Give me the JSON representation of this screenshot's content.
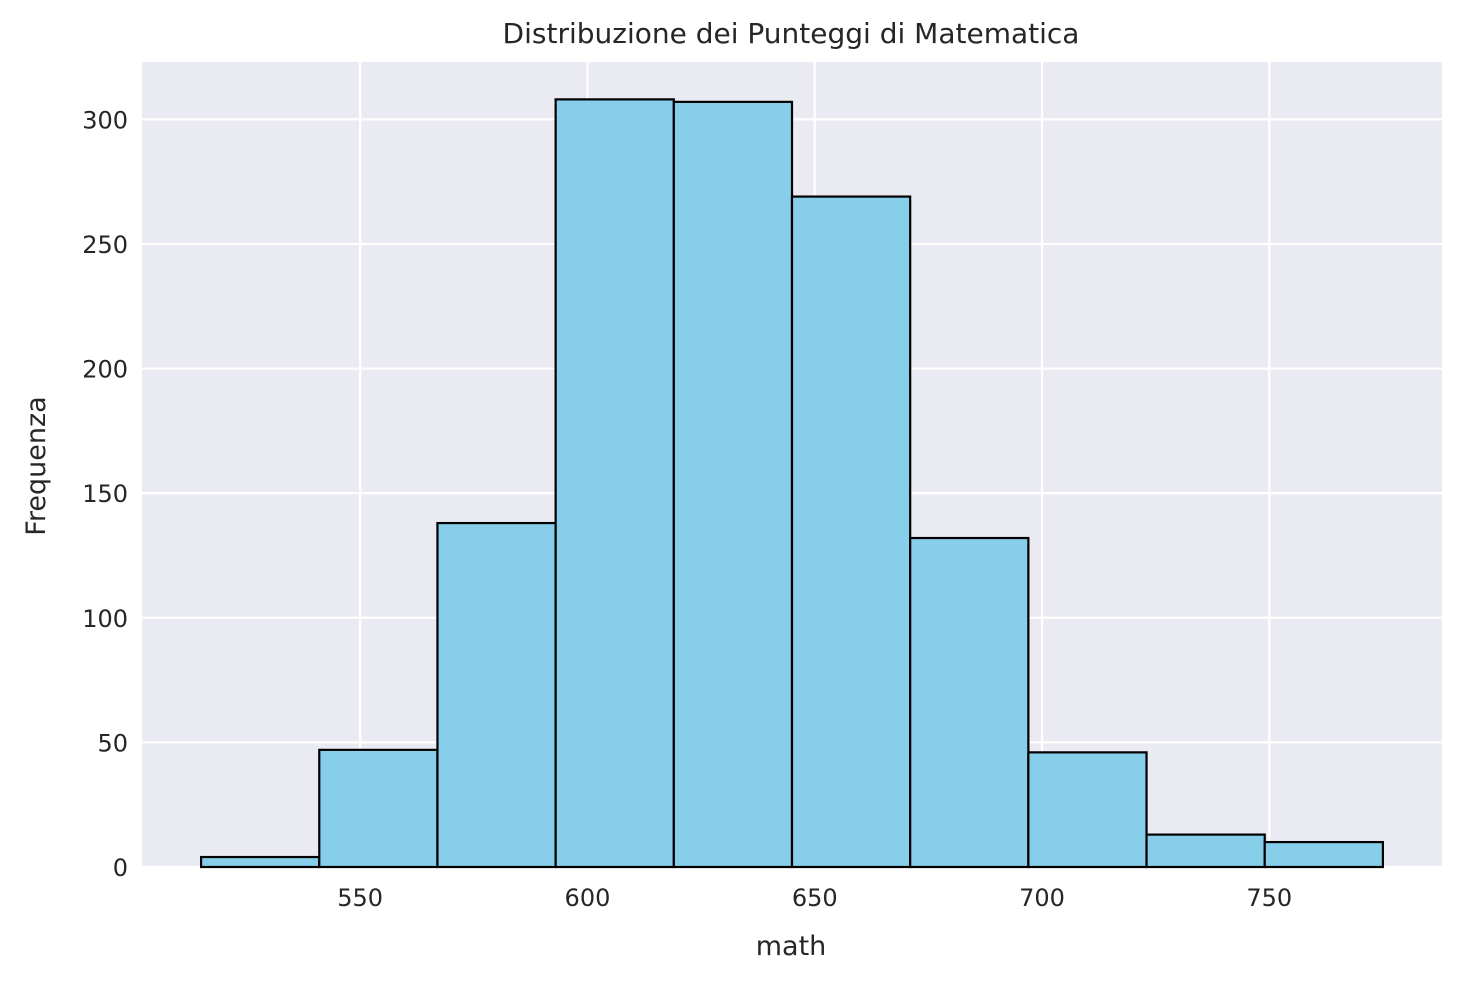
{
  "chart_data": {
    "type": "bar",
    "title": "Distribuzione dei Punteggi di Matematica",
    "xlabel": "math",
    "ylabel": "Frequenza",
    "bin_edges": [
      515,
      541,
      567,
      593,
      619,
      645,
      671,
      697,
      723,
      749,
      775
    ],
    "values": [
      4,
      47,
      138,
      308,
      307,
      269,
      132,
      46,
      13,
      10
    ],
    "xlim": [
      502,
      788
    ],
    "ylim": [
      0,
      323
    ],
    "x_ticks": [
      550,
      600,
      650,
      700,
      750
    ],
    "y_ticks": [
      0,
      50,
      100,
      150,
      200,
      250,
      300
    ],
    "grid": true,
    "colors": {
      "background": "#EAEAF2",
      "bar_fill": "#87CEEB",
      "bar_edge": "#000000",
      "grid": "#FFFFFF",
      "text": "#262626"
    }
  }
}
